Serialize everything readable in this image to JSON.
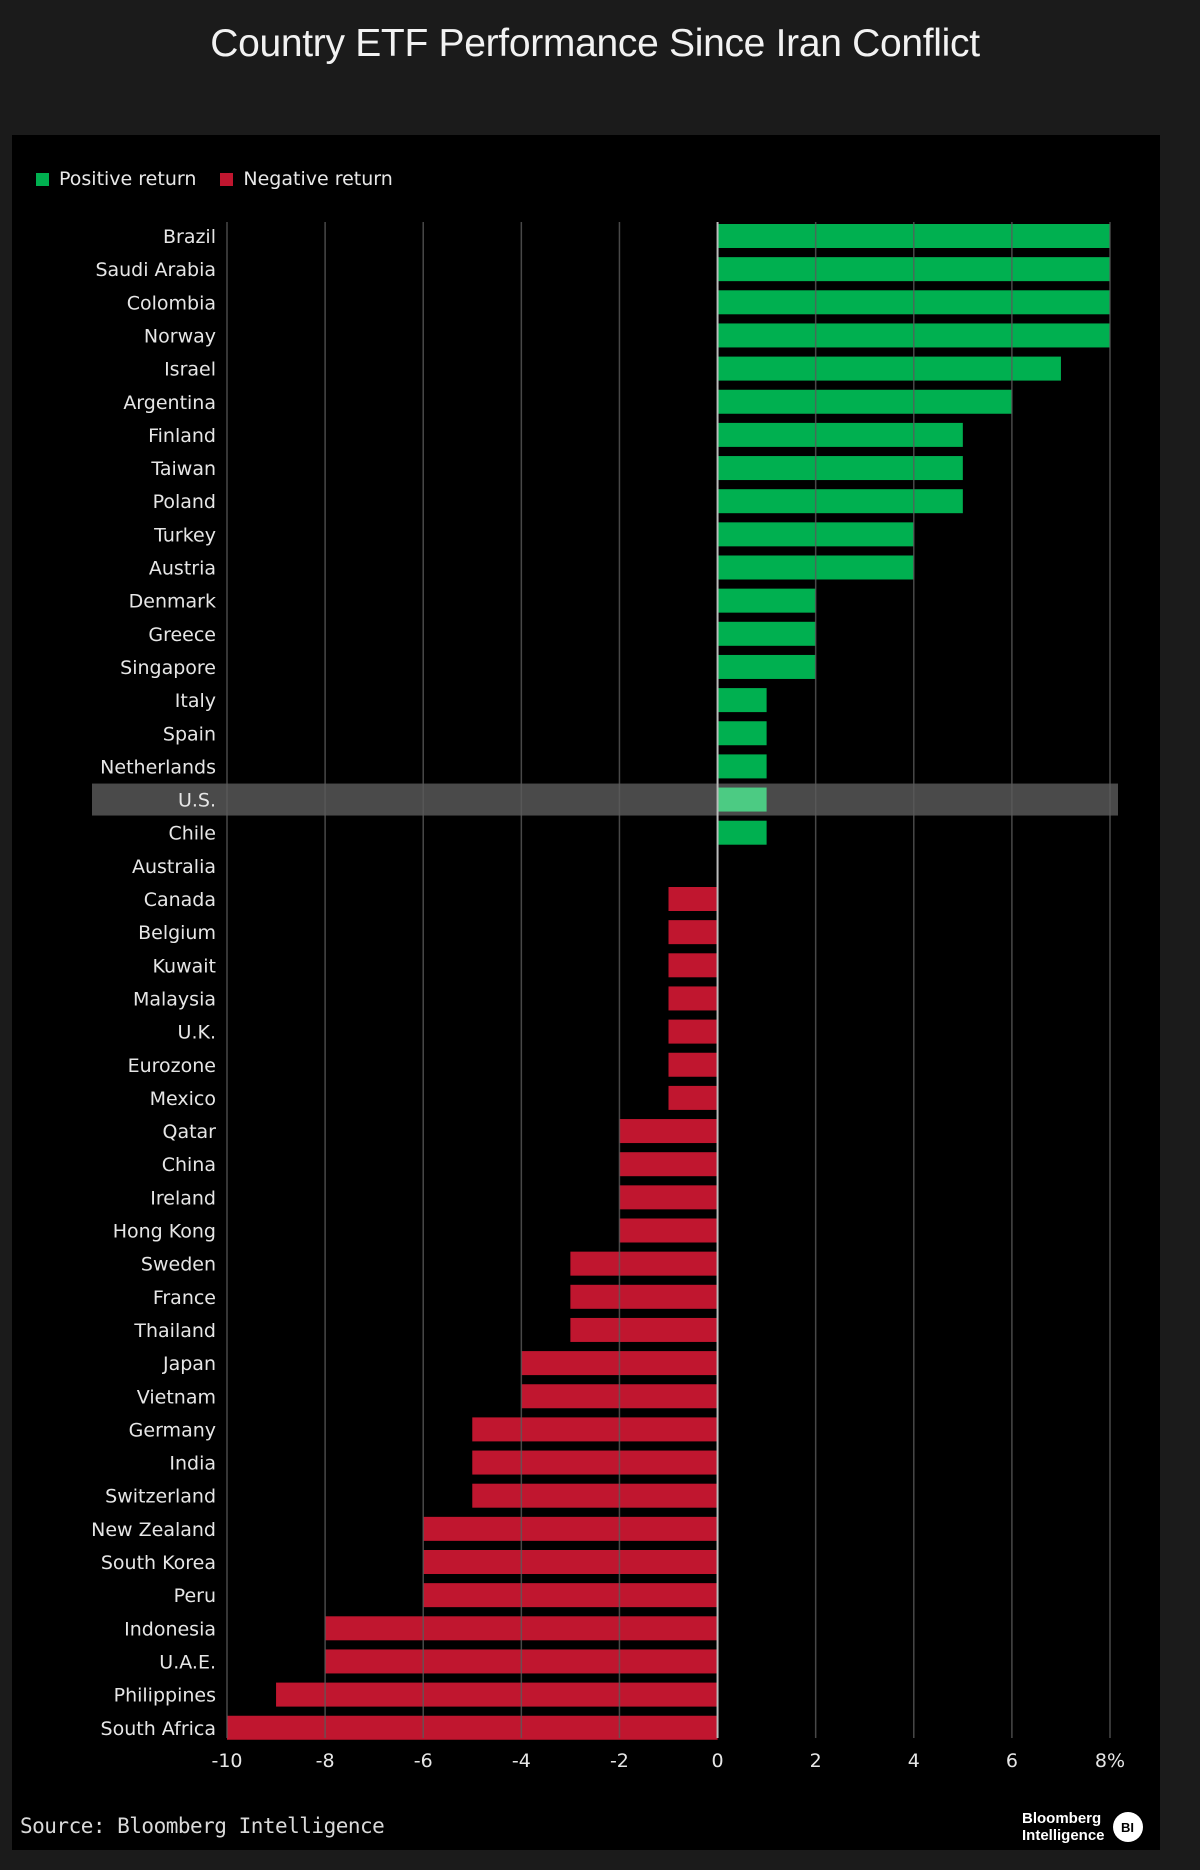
{
  "title": "Country ETF Performance Since Iran Conflict",
  "legend": [
    {
      "label": "Positive return",
      "color": "#00b050"
    },
    {
      "label": "Negative return",
      "color": "#c0162f"
    }
  ],
  "source": "Source: Bloomberg Intelligence",
  "logo": {
    "line1": "Bloomberg",
    "line2": "Intelligence",
    "badge": "BI"
  },
  "chart_data": {
    "type": "bar",
    "orientation": "horizontal",
    "title": "Country ETF Performance Since Iran Conflict",
    "xlim": [
      -10,
      8
    ],
    "xticks": [
      -10,
      -8,
      -6,
      -4,
      -2,
      0,
      2,
      4,
      6,
      8
    ],
    "xtick_labels": [
      "-10",
      "-8",
      "-6",
      "-4",
      "-2",
      "0",
      "2",
      "4",
      "6",
      "8%"
    ],
    "grid": true,
    "legend_position": "top-left",
    "highlighted_category": "U.S.",
    "positive_color": "#00b050",
    "negative_color": "#c0162f",
    "categories": [
      "Brazil",
      "Saudi Arabia",
      "Colombia",
      "Norway",
      "Israel",
      "Argentina",
      "Finland",
      "Taiwan",
      "Poland",
      "Turkey",
      "Austria",
      "Denmark",
      "Greece",
      "Singapore",
      "Italy",
      "Spain",
      "Netherlands",
      "U.S.",
      "Chile",
      "Australia",
      "Canada",
      "Belgium",
      "Kuwait",
      "Malaysia",
      "U.K.",
      "Eurozone",
      "Mexico",
      "Qatar",
      "China",
      "Ireland",
      "Hong Kong",
      "Sweden",
      "France",
      "Thailand",
      "Japan",
      "Vietnam",
      "Germany",
      "India",
      "Switzerland",
      "New Zealand",
      "South Korea",
      "Peru",
      "Indonesia",
      "U.A.E.",
      "Philippines",
      "South Africa"
    ],
    "values": [
      8,
      8,
      8,
      8,
      7,
      6,
      5,
      5,
      5,
      4,
      4,
      2,
      2,
      2,
      1,
      1,
      1,
      1,
      1,
      0,
      -1,
      -1,
      -1,
      -1,
      -1,
      -1,
      -1,
      -2,
      -2,
      -2,
      -2,
      -3,
      -3,
      -3,
      -4,
      -4,
      -5,
      -5,
      -5,
      -6,
      -6,
      -6,
      -8,
      -8,
      -9,
      -10
    ]
  }
}
